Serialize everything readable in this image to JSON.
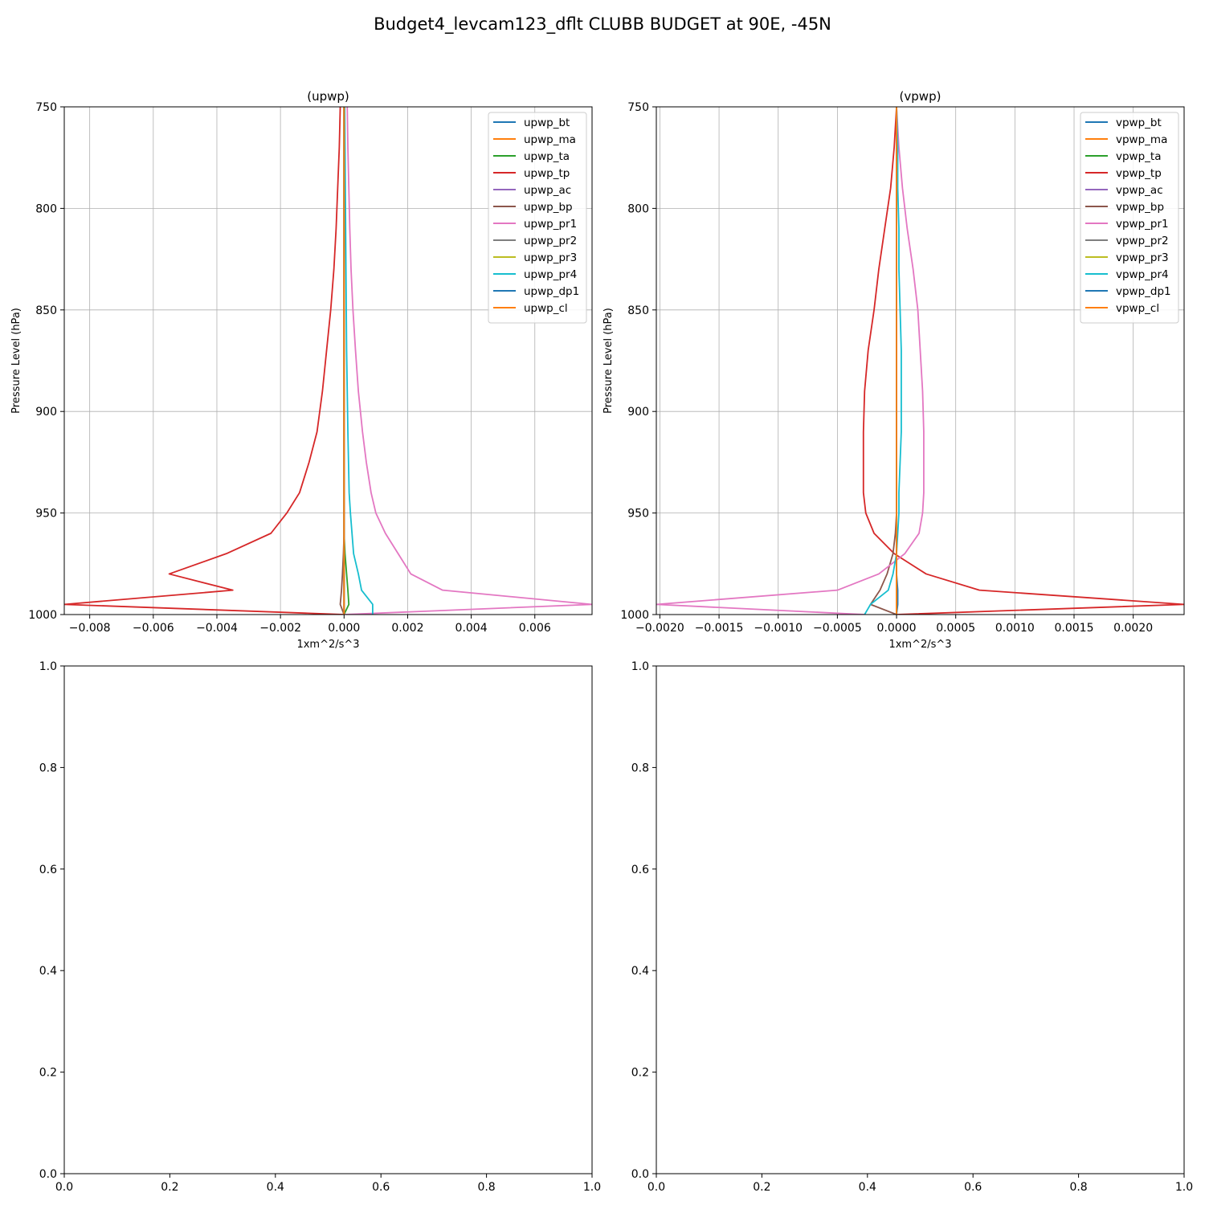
{
  "figure": {
    "suptitle": "Budget4_levcam123_dflt CLUBB BUDGET at 90E, -45N"
  },
  "colors": [
    "#1f77b4",
    "#ff7f0e",
    "#2ca02c",
    "#d62728",
    "#9467bd",
    "#8c564b",
    "#e377c2",
    "#7f7f7f",
    "#bcbd22",
    "#17becf",
    "#1f77b4",
    "#ff7f0e"
  ],
  "chart_data": [
    {
      "type": "line",
      "title": "(upwp)",
      "xlabel": "1xm^2/s^3",
      "ylabel": "Pressure Level (hPa)",
      "xlim": [
        -0.0088,
        0.0078
      ],
      "ylim": [
        1000,
        750
      ],
      "xticks": [
        -0.008,
        -0.006,
        -0.004,
        -0.002,
        0.0,
        0.002,
        0.004,
        0.006
      ],
      "xtick_labels": [
        "−0.008",
        "−0.006",
        "−0.004",
        "−0.002",
        "0.000",
        "0.002",
        "0.004",
        "0.006"
      ],
      "yticks": [
        750,
        800,
        850,
        900,
        950,
        1000
      ],
      "ytick_labels": [
        "750",
        "800",
        "850",
        "900",
        "950",
        "1000"
      ],
      "grid": true,
      "legend": "upper right",
      "levels": [
        750,
        770,
        790,
        810,
        830,
        850,
        870,
        890,
        910,
        925,
        940,
        950,
        960,
        970,
        980,
        988,
        995,
        1000
      ],
      "series": [
        {
          "name": "upwp_bt",
          "values": [
            0,
            0,
            0,
            0,
            0,
            0,
            0,
            0,
            0,
            0,
            0,
            0,
            0,
            0,
            0,
            0,
            0,
            0
          ]
        },
        {
          "name": "upwp_ma",
          "values": [
            0,
            0,
            0,
            0,
            0,
            0,
            0,
            0,
            0,
            0,
            0,
            0,
            0,
            0,
            0,
            0,
            0,
            0
          ]
        },
        {
          "name": "upwp_ta",
          "values": [
            0,
            0,
            0,
            0,
            0,
            0,
            0,
            0,
            0,
            0,
            0,
            0,
            0,
            3e-05,
            8e-05,
            0.00012,
            0.00015,
            0
          ]
        },
        {
          "name": "upwp_tp",
          "values": [
            -0.00012,
            -0.00015,
            -0.0002,
            -0.00025,
            -0.00032,
            -0.00042,
            -0.00055,
            -0.00068,
            -0.00085,
            -0.0011,
            -0.0014,
            -0.0018,
            -0.0023,
            -0.0037,
            -0.0055,
            -0.0035,
            -0.0088,
            0
          ]
        },
        {
          "name": "upwp_ac",
          "values": [
            0,
            0,
            0,
            0,
            0,
            0,
            0,
            0,
            0,
            0,
            0,
            0,
            0,
            0,
            0,
            0,
            0,
            0
          ]
        },
        {
          "name": "upwp_bp",
          "values": [
            0,
            0,
            0,
            0,
            0,
            0,
            0,
            0,
            0,
            0,
            0,
            0,
            0,
            -2e-05,
            -5e-05,
            -8e-05,
            -0.00012,
            0
          ]
        },
        {
          "name": "upwp_pr1",
          "values": [
            0.0001,
            0.00012,
            0.00015,
            0.00018,
            0.00022,
            0.00028,
            0.00036,
            0.00045,
            0.00058,
            0.0007,
            0.00085,
            0.001,
            0.0013,
            0.0017,
            0.0021,
            0.0031,
            0.0078,
            0
          ]
        },
        {
          "name": "upwp_pr2",
          "values": [
            0,
            0,
            0,
            0,
            0,
            0,
            0,
            0,
            0,
            0,
            0,
            0,
            0,
            0,
            0,
            0,
            0,
            0
          ]
        },
        {
          "name": "upwp_pr3",
          "values": [
            0,
            0,
            0,
            0,
            0,
            0,
            0,
            0,
            0,
            0,
            0,
            0,
            0,
            0,
            0,
            0,
            0,
            0
          ]
        },
        {
          "name": "upwp_pr4",
          "values": [
            2e-05,
            3e-05,
            4e-05,
            5e-05,
            6e-05,
            7e-05,
            8e-05,
            0.0001,
            0.00012,
            0.00014,
            0.00016,
            0.0002,
            0.00025,
            0.0003,
            0.00045,
            0.00055,
            0.0009,
            0.0009
          ]
        },
        {
          "name": "upwp_dp1",
          "values": [
            0,
            0,
            0,
            0,
            0,
            0,
            0,
            0,
            0,
            0,
            0,
            0,
            0,
            0,
            0,
            0,
            0,
            0
          ]
        },
        {
          "name": "upwp_cl",
          "values": [
            0,
            0,
            0,
            0,
            0,
            0,
            0,
            0,
            0,
            0,
            0,
            0,
            0,
            0,
            0,
            0,
            0,
            0
          ]
        }
      ]
    },
    {
      "type": "line",
      "title": "(vpwp)",
      "xlabel": "1xm^2/s^3",
      "ylabel": "Pressure Level (hPa)",
      "xlim": [
        -0.00203,
        0.00243
      ],
      "ylim": [
        1000,
        750
      ],
      "xticks": [
        -0.002,
        -0.0015,
        -0.001,
        -0.0005,
        0.0,
        0.0005,
        0.001,
        0.0015,
        0.002
      ],
      "xtick_labels": [
        "−0.0020",
        "−0.0015",
        "−0.0010",
        "−0.0005",
        "0.0000",
        "0.0005",
        "0.0010",
        "0.0015",
        "0.0020"
      ],
      "yticks": [
        750,
        800,
        850,
        900,
        950,
        1000
      ],
      "ytick_labels": [
        "750",
        "800",
        "850",
        "900",
        "950",
        "1000"
      ],
      "grid": true,
      "legend": "upper right",
      "levels": [
        750,
        770,
        790,
        810,
        830,
        850,
        870,
        890,
        910,
        925,
        940,
        950,
        960,
        970,
        980,
        988,
        995,
        1000
      ],
      "series": [
        {
          "name": "vpwp_bt",
          "values": [
            0,
            0,
            0,
            0,
            0,
            0,
            0,
            0,
            0,
            0,
            0,
            0,
            0,
            0,
            0,
            0,
            0,
            0
          ]
        },
        {
          "name": "vpwp_ma",
          "values": [
            0,
            0,
            0,
            0,
            0,
            0,
            0,
            0,
            0,
            0,
            0,
            0,
            0,
            0,
            0,
            0,
            0,
            0
          ]
        },
        {
          "name": "vpwp_ta",
          "values": [
            0,
            0,
            0,
            0,
            0,
            0,
            0,
            0,
            0,
            0,
            0,
            0,
            0,
            0,
            0,
            0,
            0,
            0
          ]
        },
        {
          "name": "vpwp_tp",
          "values": [
            0,
            -2e-05,
            -5e-05,
            -0.0001,
            -0.00015,
            -0.00019,
            -0.00024,
            -0.00027,
            -0.00028,
            -0.00028,
            -0.00028,
            -0.00026,
            -0.00019,
            -2e-05,
            0.00025,
            0.0007,
            0.00243,
            0
          ]
        },
        {
          "name": "vpwp_ac",
          "values": [
            0,
            0,
            0,
            0,
            0,
            0,
            0,
            0,
            0,
            0,
            0,
            0,
            0,
            0,
            0,
            0,
            0,
            0
          ]
        },
        {
          "name": "vpwp_bp",
          "values": [
            0,
            0,
            0,
            0,
            0,
            0,
            0,
            0,
            0,
            0,
            0,
            0,
            -1e-05,
            -3e-05,
            -8e-05,
            -0.00014,
            -0.00022,
            0
          ]
        },
        {
          "name": "vpwp_pr1",
          "values": [
            0,
            2e-05,
            5e-05,
            9e-05,
            0.00014,
            0.00018,
            0.0002,
            0.00022,
            0.00023,
            0.00023,
            0.00023,
            0.00022,
            0.00019,
            7e-05,
            -0.00015,
            -0.0005,
            -0.00203,
            -0.00027
          ]
        },
        {
          "name": "vpwp_pr2",
          "values": [
            0,
            0,
            0,
            0,
            0,
            0,
            0,
            0,
            0,
            0,
            0,
            0,
            0,
            0,
            0,
            0,
            0,
            0
          ]
        },
        {
          "name": "vpwp_pr3",
          "values": [
            0,
            0,
            0,
            0,
            0,
            0,
            0,
            0,
            0,
            0,
            0,
            0,
            0,
            0,
            0,
            0,
            0,
            0
          ]
        },
        {
          "name": "vpwp_pr4",
          "values": [
            0,
            1e-05,
            1e-05,
            2e-05,
            2e-05,
            3e-05,
            4e-05,
            4e-05,
            4e-05,
            3e-05,
            2e-05,
            2e-05,
            1e-05,
            0,
            -3e-05,
            -7e-05,
            -0.00022,
            -0.00027
          ]
        },
        {
          "name": "vpwp_dp1",
          "values": [
            0,
            0,
            0,
            0,
            0,
            0,
            0,
            0,
            0,
            0,
            0,
            0,
            0,
            0,
            0,
            1e-05,
            1e-05,
            0
          ]
        },
        {
          "name": "vpwp_cl",
          "values": [
            0,
            0,
            0,
            0,
            0,
            0,
            0,
            0,
            0,
            0,
            0,
            0,
            0,
            0,
            0,
            0,
            0,
            0
          ]
        }
      ]
    },
    {
      "type": "line",
      "title": "",
      "xlim": [
        0,
        1
      ],
      "ylim": [
        0,
        1
      ],
      "xticks": [
        0.0,
        0.2,
        0.4,
        0.6,
        0.8,
        1.0
      ],
      "xtick_labels": [
        "0.0",
        "0.2",
        "0.4",
        "0.6",
        "0.8",
        "1.0"
      ],
      "yticks": [
        0.0,
        0.2,
        0.4,
        0.6,
        0.8,
        1.0
      ],
      "ytick_labels": [
        "0.0",
        "0.2",
        "0.4",
        "0.6",
        "0.8",
        "1.0"
      ],
      "grid": false,
      "series": []
    },
    {
      "type": "line",
      "title": "",
      "xlim": [
        0,
        1
      ],
      "ylim": [
        0,
        1
      ],
      "xticks": [
        0.0,
        0.2,
        0.4,
        0.6,
        0.8,
        1.0
      ],
      "xtick_labels": [
        "0.0",
        "0.2",
        "0.4",
        "0.6",
        "0.8",
        "1.0"
      ],
      "yticks": [
        0.0,
        0.2,
        0.4,
        0.6,
        0.8,
        1.0
      ],
      "ytick_labels": [
        "0.0",
        "0.2",
        "0.4",
        "0.6",
        "0.8",
        "1.0"
      ],
      "grid": false,
      "series": []
    }
  ]
}
